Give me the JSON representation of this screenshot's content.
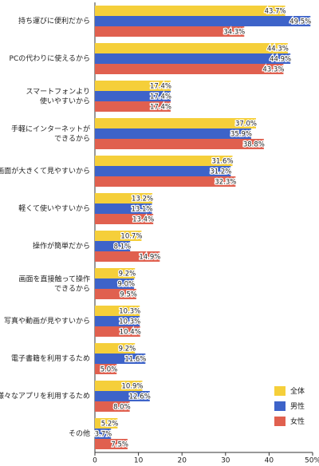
{
  "chart_data": {
    "type": "bar",
    "orientation": "horizontal",
    "categories": [
      "持ち運びに便利だから",
      "PCの代わりに使えるから",
      "スマートフォンより\n使いやすいから",
      "手軽にインターネットが\nできるから",
      "画面が大きくて見やすいから",
      "軽くて使いやすいから",
      "操作が簡単だから",
      "画面を直接触って操作\nできるから",
      "写真や動画が見やすいから",
      "電子書籍を利用するため",
      "様々なアプリを利用するため",
      "その他"
    ],
    "series": [
      {
        "name": "全体",
        "color": "#f5cf3a",
        "values": [
          43.7,
          44.3,
          17.4,
          37.0,
          31.6,
          13.2,
          10.7,
          9.2,
          10.3,
          9.2,
          10.9,
          5.2
        ],
        "value_labels": [
          "43.7%",
          "44.3%",
          "17.4%",
          "37.0%",
          "31.6%",
          "13.2%",
          "10.7%",
          "9.2%",
          "10.3%",
          "9.2%",
          "10.9%",
          "5.2%"
        ]
      },
      {
        "name": "男性",
        "color": "#3d63c9",
        "values": [
          49.5,
          44.9,
          17.4,
          35.9,
          31.2,
          13.1,
          8.1,
          9.0,
          10.3,
          11.6,
          12.6,
          3.7
        ],
        "value_labels": [
          "49.5%",
          "44.9%",
          "17.4%",
          "35.9%",
          "31.2%",
          "13.1%",
          "8.1%",
          "9.0%",
          "10.3%",
          "11.6%",
          "12.6%",
          "3.7%"
        ]
      },
      {
        "name": "女性",
        "color": "#e0604f",
        "values": [
          34.3,
          43.3,
          17.4,
          38.8,
          32.3,
          13.4,
          14.9,
          9.5,
          10.4,
          5.0,
          8.0,
          7.5
        ],
        "value_labels": [
          "34.3%",
          "43.3%",
          "17.4%",
          "38.8%",
          "32.3%",
          "13.4%",
          "14.9%",
          "9.5%",
          "10.4%",
          "5.0%",
          "8.0%",
          "7.5%"
        ]
      }
    ],
    "xlim": [
      0,
      50
    ],
    "xticks": [
      0,
      10,
      20,
      30,
      40,
      {
        "value": 50,
        "label": "50%"
      }
    ],
    "legend": "lower right"
  }
}
